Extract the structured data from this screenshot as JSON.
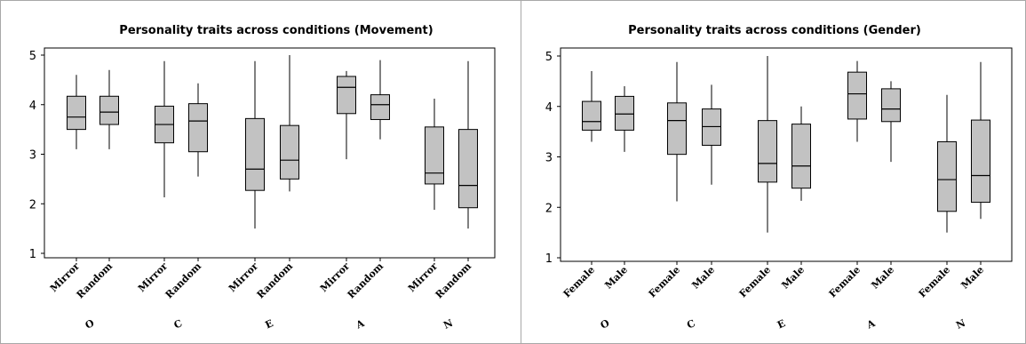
{
  "chart_data": [
    {
      "type": "box",
      "title": "Personality traits across conditions (Movement)",
      "ylim": [
        1,
        5
      ],
      "yticks": [
        1,
        2,
        3,
        4,
        5
      ],
      "groups": [
        "O",
        "C",
        "E",
        "A",
        "N"
      ],
      "categories": [
        "Mirror",
        "Random"
      ],
      "boxes": [
        {
          "group": "O",
          "category": "Mirror",
          "min": 3.1,
          "q1": 3.5,
          "median": 3.75,
          "q3": 4.17,
          "max": 4.6
        },
        {
          "group": "O",
          "category": "Random",
          "min": 3.1,
          "q1": 3.6,
          "median": 3.85,
          "q3": 4.17,
          "max": 4.7
        },
        {
          "group": "C",
          "category": "Mirror",
          "min": 2.13,
          "q1": 3.23,
          "median": 3.6,
          "q3": 3.97,
          "max": 4.88
        },
        {
          "group": "C",
          "category": "Random",
          "min": 2.55,
          "q1": 3.05,
          "median": 3.67,
          "q3": 4.02,
          "max": 4.43
        },
        {
          "group": "E",
          "category": "Mirror",
          "min": 1.5,
          "q1": 2.27,
          "median": 2.7,
          "q3": 3.72,
          "max": 4.88
        },
        {
          "group": "E",
          "category": "Random",
          "min": 2.25,
          "q1": 2.5,
          "median": 2.88,
          "q3": 3.58,
          "max": 5.0
        },
        {
          "group": "A",
          "category": "Mirror",
          "min": 2.9,
          "q1": 3.82,
          "median": 4.35,
          "q3": 4.57,
          "max": 4.68
        },
        {
          "group": "A",
          "category": "Random",
          "min": 3.3,
          "q1": 3.7,
          "median": 4.0,
          "q3": 4.2,
          "max": 4.9
        },
        {
          "group": "N",
          "category": "Mirror",
          "min": 1.88,
          "q1": 2.4,
          "median": 2.62,
          "q3": 3.55,
          "max": 4.12
        },
        {
          "group": "N",
          "category": "Random",
          "min": 1.5,
          "q1": 1.92,
          "median": 2.37,
          "q3": 3.5,
          "max": 4.88
        }
      ]
    },
    {
      "type": "box",
      "title": "Personality traits across conditions (Gender)",
      "ylim": [
        1,
        5
      ],
      "yticks": [
        1,
        2,
        3,
        4,
        5
      ],
      "groups": [
        "O",
        "C",
        "E",
        "A",
        "N"
      ],
      "categories": [
        "Female",
        "Male"
      ],
      "boxes": [
        {
          "group": "O",
          "category": "Female",
          "min": 3.3,
          "q1": 3.53,
          "median": 3.7,
          "q3": 4.1,
          "max": 4.7
        },
        {
          "group": "O",
          "category": "Male",
          "min": 3.1,
          "q1": 3.53,
          "median": 3.85,
          "q3": 4.2,
          "max": 4.4
        },
        {
          "group": "C",
          "category": "Female",
          "min": 2.12,
          "q1": 3.05,
          "median": 3.72,
          "q3": 4.07,
          "max": 4.88
        },
        {
          "group": "C",
          "category": "Male",
          "min": 2.45,
          "q1": 3.23,
          "median": 3.6,
          "q3": 3.95,
          "max": 4.43
        },
        {
          "group": "E",
          "category": "Female",
          "min": 1.5,
          "q1": 2.5,
          "median": 2.87,
          "q3": 3.72,
          "max": 5.0
        },
        {
          "group": "E",
          "category": "Male",
          "min": 2.13,
          "q1": 2.38,
          "median": 2.82,
          "q3": 3.65,
          "max": 4.0
        },
        {
          "group": "A",
          "category": "Female",
          "min": 3.3,
          "q1": 3.75,
          "median": 4.25,
          "q3": 4.68,
          "max": 4.9
        },
        {
          "group": "A",
          "category": "Male",
          "min": 2.9,
          "q1": 3.7,
          "median": 3.95,
          "q3": 4.35,
          "max": 4.5
        },
        {
          "group": "N",
          "category": "Female",
          "min": 1.5,
          "q1": 1.92,
          "median": 2.55,
          "q3": 3.3,
          "max": 4.23
        },
        {
          "group": "N",
          "category": "Male",
          "min": 1.77,
          "q1": 2.1,
          "median": 2.63,
          "q3": 3.73,
          "max": 4.88
        }
      ]
    }
  ]
}
